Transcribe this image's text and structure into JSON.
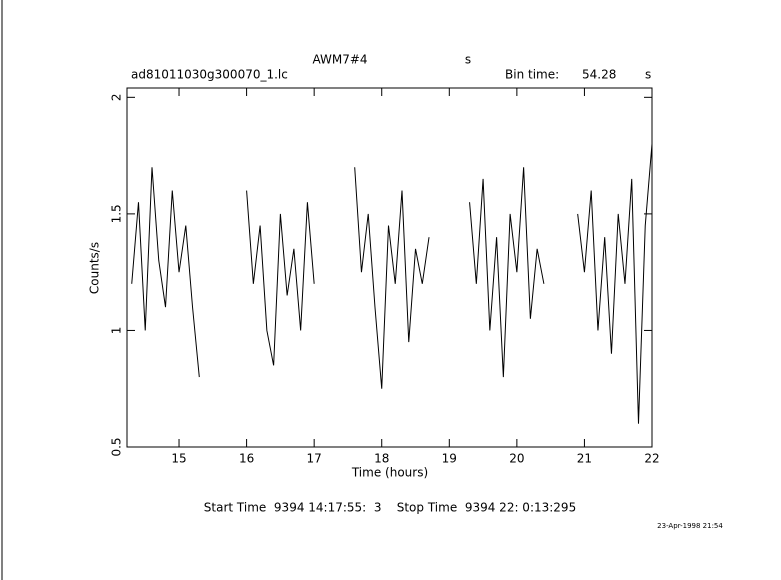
{
  "chart_data": {
    "type": "line",
    "title": "AWM7#4",
    "title_unit": "s",
    "subtitle": "ad81011030g300070_1.lc",
    "bin_label": "Bin time:",
    "bin_value": "54.28",
    "bin_unit": "s",
    "xlabel": "Time (hours)",
    "ylabel": "Counts/s",
    "footer": "Start Time  9394 14:17:55:  3    Stop Time  9394 22: 0:13:295",
    "date": "23-Apr-1998 21:54",
    "xlim": [
      14.23,
      22.0
    ],
    "ylim": [
      0.5,
      2.04
    ],
    "xticks": [
      15,
      16,
      17,
      18,
      19,
      20,
      21,
      22
    ],
    "yticks": [
      0.5,
      1,
      1.5,
      2
    ],
    "x": [
      14.3,
      14.4,
      14.5,
      14.6,
      14.7,
      14.8,
      14.9,
      15.0,
      15.1,
      15.2,
      15.3,
      15.6,
      16.0,
      16.1,
      16.2,
      16.3,
      16.4,
      16.5,
      16.6,
      16.7,
      16.8,
      16.9,
      17.0,
      17.3,
      17.6,
      17.7,
      17.8,
      17.9,
      18.0,
      18.1,
      18.2,
      18.3,
      18.4,
      18.5,
      18.6,
      18.7,
      19.0,
      19.3,
      19.4,
      19.5,
      19.6,
      19.7,
      19.8,
      19.9,
      20.0,
      20.1,
      20.2,
      20.3,
      20.4,
      20.65,
      20.9,
      21.0,
      21.1,
      21.2,
      21.3,
      21.4,
      21.5,
      21.6,
      21.7,
      21.8,
      21.9,
      22.0
    ],
    "series": [
      {
        "name": "Counts",
        "color": "#000000",
        "values": [
          1.2,
          1.55,
          1.0,
          1.7,
          1.3,
          1.1,
          1.6,
          1.25,
          1.45,
          1.1,
          0.8,
          null,
          1.6,
          1.2,
          1.45,
          1.0,
          0.85,
          1.5,
          1.15,
          1.35,
          1.0,
          1.55,
          1.2,
          null,
          1.7,
          1.25,
          1.5,
          1.1,
          0.75,
          1.45,
          1.2,
          1.6,
          0.95,
          1.35,
          1.2,
          1.4,
          null,
          1.55,
          1.2,
          1.65,
          1.0,
          1.4,
          0.8,
          1.5,
          1.25,
          1.7,
          1.05,
          1.35,
          1.2,
          null,
          1.5,
          1.25,
          1.6,
          1.0,
          1.4,
          0.9,
          1.5,
          1.2,
          1.65,
          0.6,
          1.45,
          1.8
        ]
      }
    ]
  }
}
